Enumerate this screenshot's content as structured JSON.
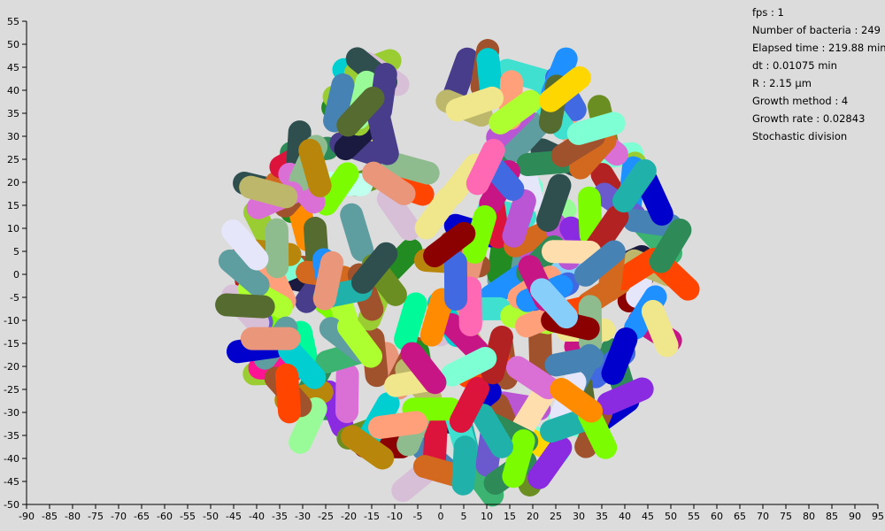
{
  "simulation": {
    "background_color": "#dcdcdc",
    "colony": {
      "center_um": [
        4,
        1.5
      ],
      "radius_um": 50,
      "cell_count": 249,
      "cell_length_um": 8.0,
      "cell_width_um": 5.0,
      "random_seed": 7
    },
    "palette": [
      "#8a2be2",
      "#6a5acd",
      "#2e8b57",
      "#ff6347",
      "#3cb371",
      "#ffd700",
      "#1e90ff",
      "#dc143c",
      "#9acd32",
      "#ff69b4",
      "#4682b4",
      "#d2691e",
      "#40e0d0",
      "#9400d3",
      "#228b22",
      "#ff8c00",
      "#7fffd4",
      "#b22222",
      "#00ced1",
      "#da70d6",
      "#556b2f",
      "#f0e68c",
      "#4169e1",
      "#e9967a",
      "#8fbc8f",
      "#ba55d3",
      "#20b2aa",
      "#c71585",
      "#98fb98",
      "#483d8b",
      "#ff4500",
      "#adff2f",
      "#1a1a40",
      "#d8bfd8",
      "#00fa9a",
      "#b8860b",
      "#87cefa",
      "#8b0000",
      "#7cfc00",
      "#ffa07a",
      "#2f4f4f",
      "#e6e6fa",
      "#6b8e23",
      "#ff1493",
      "#5f9ea0",
      "#ffdead",
      "#0000cd",
      "#bdb76b",
      "#c0ffee",
      "#a0522d"
    ]
  },
  "x_axis": {
    "min": -90,
    "max": 95,
    "step": 5
  },
  "y_axis": {
    "min": -50,
    "max": 55,
    "step": 5
  },
  "info_panel": {
    "fps": "fps : 1",
    "bacteria_count": "Number of bacteria : 249",
    "elapsed_time": "Elapsed time : 219.88 min",
    "dt": "dt : 0.01075 min",
    "radius": "R : 2.15 µm",
    "growth_method": "Growth method : 4",
    "growth_rate": "Growth rate : 0.02843",
    "division": "Stochastic division"
  }
}
